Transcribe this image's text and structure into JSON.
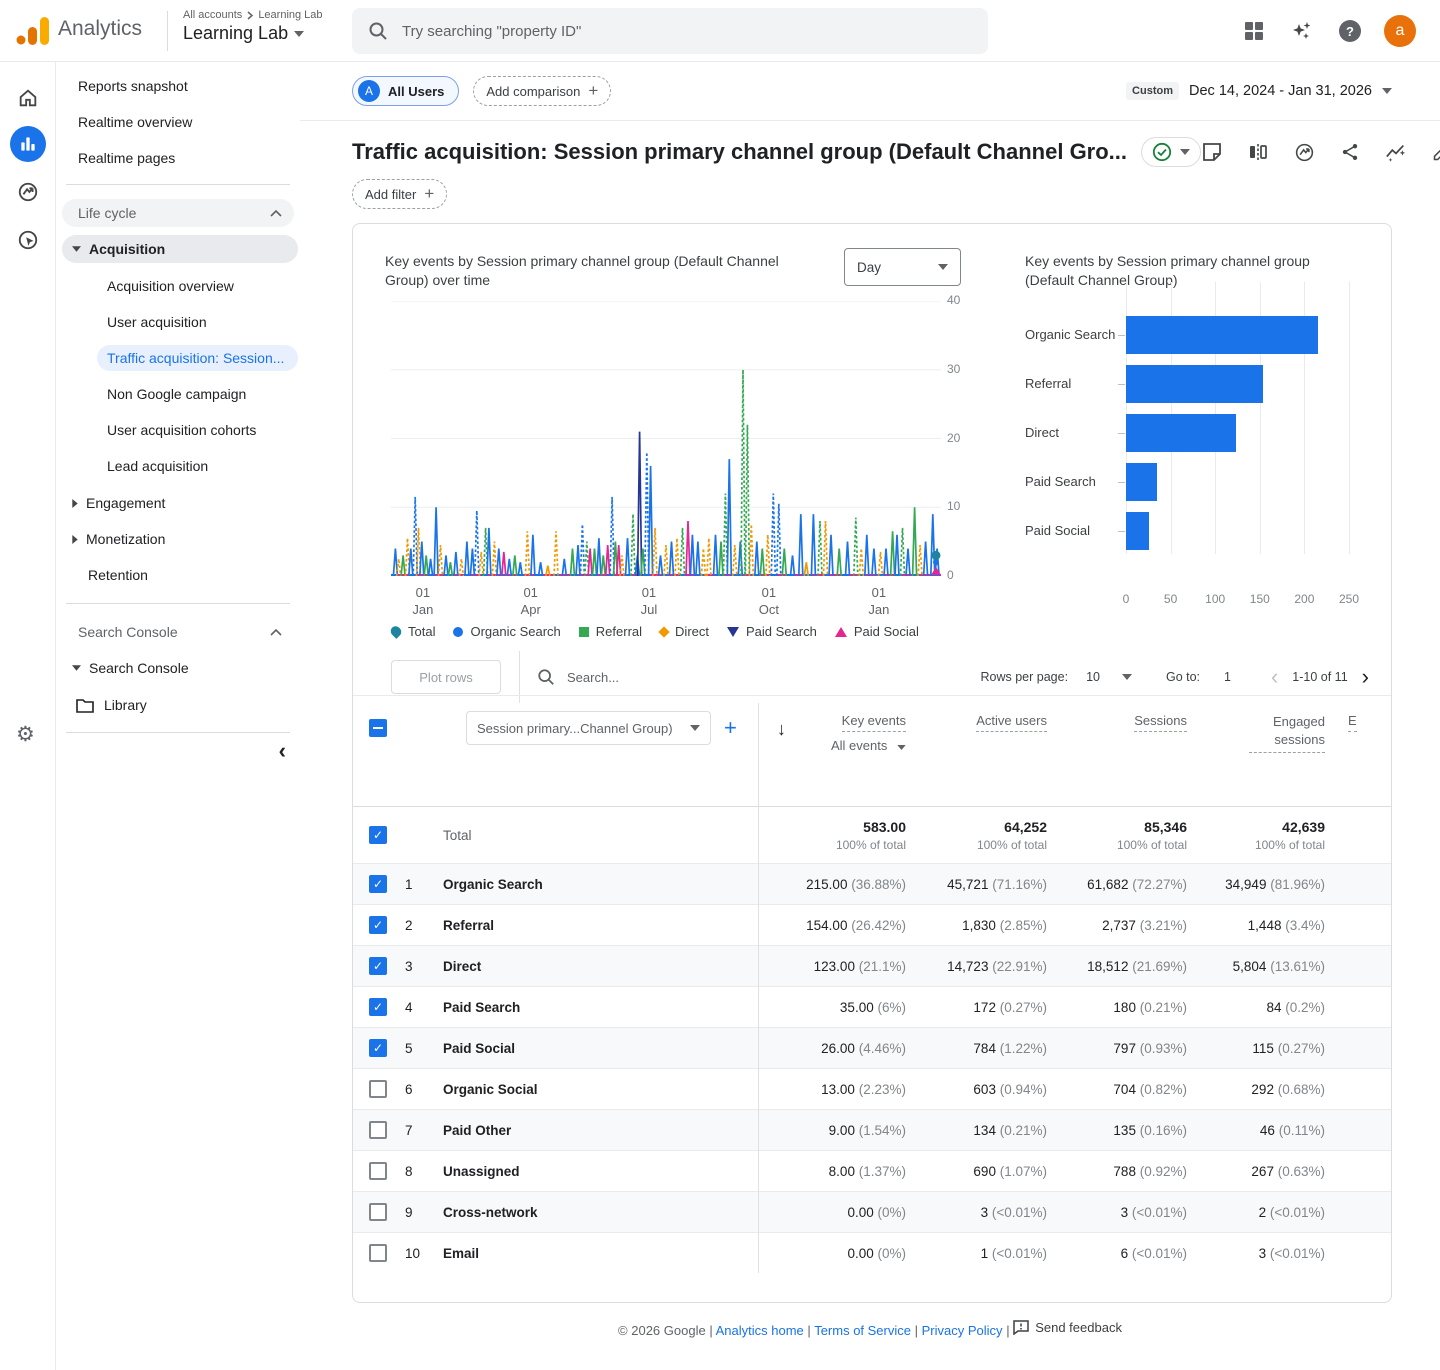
{
  "topbar": {
    "product": "Analytics",
    "breadcrumb": [
      "All accounts",
      "Learning Lab"
    ],
    "property": "Learning Lab",
    "search_placeholder": "Try searching \"property ID\"",
    "avatar_letter": "a",
    "help_glyph": "?"
  },
  "sidebar": {
    "top_items": [
      "Reports snapshot",
      "Realtime overview",
      "Realtime pages"
    ],
    "lifecycle_header": "Life cycle",
    "acquisition_label": "Acquisition",
    "acquisition_children": [
      "Acquisition overview",
      "User acquisition",
      "Traffic acquisition: Session...",
      "Non Google campaign",
      "User acquisition cohorts",
      "Lead acquisition"
    ],
    "engagement": "Engagement",
    "monetization": "Monetization",
    "retention": "Retention",
    "search_console_header": "Search Console",
    "search_console_item": "Search Console",
    "library": "Library"
  },
  "controls": {
    "all_users": "All Users",
    "all_users_badge": "A",
    "add_comparison": "Add comparison",
    "custom_label": "Custom",
    "date_range": "Dec 14, 2024 - Jan 31, 2026"
  },
  "page": {
    "title": "Traffic acquisition: Session primary channel group (Default Channel Gro...",
    "add_filter": "Add filter"
  },
  "chart_data": [
    {
      "type": "line",
      "title": "Key events by Session primary channel group (Default Channel Group) over time",
      "granularity": "Day",
      "ylim": [
        0,
        40
      ],
      "yticks": [
        40,
        30,
        20,
        10,
        0
      ],
      "xticks": [
        {
          "day": "01",
          "month": "Jan",
          "x": 0.058
        },
        {
          "day": "01",
          "month": "Apr",
          "x": 0.254
        },
        {
          "day": "01",
          "month": "Jul",
          "x": 0.469
        },
        {
          "day": "01",
          "month": "Oct",
          "x": 0.687
        },
        {
          "day": "01",
          "month": "Jan",
          "x": 0.887
        }
      ],
      "legend": [
        {
          "name": "Total",
          "color": "#1d85a0",
          "shape": "balloon"
        },
        {
          "name": "Organic Search",
          "color": "#1a73e8",
          "shape": "circle"
        },
        {
          "name": "Referral",
          "color": "#34a853",
          "shape": "square"
        },
        {
          "name": "Direct",
          "color": "#f29900",
          "shape": "diamond"
        },
        {
          "name": "Paid Search",
          "color": "#283593",
          "shape": "tri-down"
        },
        {
          "name": "Paid Social",
          "color": "#e52592",
          "shape": "tri-up"
        }
      ],
      "spikes": [
        [
          0.008,
          4,
          1,
          0
        ],
        [
          0.014,
          2.5,
          3,
          1
        ],
        [
          0.022,
          3,
          2,
          0
        ],
        [
          0.03,
          5.5,
          3,
          1
        ],
        [
          0.036,
          4,
          1,
          0
        ],
        [
          0.044,
          11.5,
          1,
          1
        ],
        [
          0.05,
          7,
          3,
          1
        ],
        [
          0.056,
          5,
          1,
          0
        ],
        [
          0.064,
          3,
          2,
          0
        ],
        [
          0.072,
          2.5,
          1,
          0
        ],
        [
          0.082,
          10,
          1,
          0
        ],
        [
          0.09,
          4.5,
          3,
          1
        ],
        [
          0.1,
          3,
          1,
          0
        ],
        [
          0.108,
          2,
          2,
          0
        ],
        [
          0.118,
          3.5,
          1,
          0
        ],
        [
          0.128,
          2.5,
          3,
          1
        ],
        [
          0.138,
          5,
          1,
          0
        ],
        [
          0.148,
          4,
          1,
          0
        ],
        [
          0.156,
          9.5,
          1,
          1
        ],
        [
          0.164,
          3.5,
          3,
          1
        ],
        [
          0.172,
          7,
          2,
          1
        ],
        [
          0.178,
          7,
          1,
          0
        ],
        [
          0.188,
          5,
          3,
          1
        ],
        [
          0.196,
          4,
          1,
          0
        ],
        [
          0.205,
          3.5,
          5,
          0
        ],
        [
          0.215,
          2.5,
          1,
          0
        ],
        [
          0.225,
          3,
          2,
          0
        ],
        [
          0.235,
          2,
          1,
          0
        ],
        [
          0.248,
          6.5,
          3,
          1
        ],
        [
          0.258,
          6,
          1,
          0
        ],
        [
          0.272,
          2,
          1,
          0
        ],
        [
          0.285,
          1.5,
          3,
          0
        ],
        [
          0.3,
          6.5,
          3,
          1
        ],
        [
          0.315,
          2.5,
          1,
          0
        ],
        [
          0.33,
          4,
          2,
          0
        ],
        [
          0.34,
          4.5,
          1,
          0
        ],
        [
          0.348,
          7.5,
          1,
          1
        ],
        [
          0.356,
          5,
          2,
          1
        ],
        [
          0.362,
          4,
          5,
          0
        ],
        [
          0.37,
          4,
          2,
          0
        ],
        [
          0.378,
          5.5,
          1,
          0
        ],
        [
          0.386,
          3,
          2,
          0
        ],
        [
          0.394,
          4.5,
          5,
          0
        ],
        [
          0.402,
          11.5,
          1,
          1
        ],
        [
          0.408,
          5,
          2,
          0
        ],
        [
          0.414,
          4.5,
          5,
          0
        ],
        [
          0.42,
          3,
          3,
          1
        ],
        [
          0.43,
          5.5,
          1,
          0
        ],
        [
          0.44,
          9,
          2,
          1
        ],
        [
          0.448,
          3,
          1,
          0
        ],
        [
          0.452,
          21,
          4,
          0
        ],
        [
          0.458,
          4,
          2,
          0
        ],
        [
          0.465,
          18,
          1,
          1
        ],
        [
          0.472,
          16,
          1,
          0
        ],
        [
          0.48,
          7,
          3,
          1
        ],
        [
          0.49,
          3,
          1,
          0
        ],
        [
          0.5,
          4.5,
          3,
          1
        ],
        [
          0.51,
          5,
          1,
          0
        ],
        [
          0.52,
          5.5,
          3,
          1
        ],
        [
          0.53,
          7,
          2,
          1
        ],
        [
          0.54,
          8,
          5,
          0
        ],
        [
          0.548,
          6,
          1,
          0
        ],
        [
          0.558,
          5,
          1,
          0
        ],
        [
          0.568,
          4,
          3,
          1
        ],
        [
          0.578,
          5.5,
          3,
          1
        ],
        [
          0.59,
          6,
          1,
          0
        ],
        [
          0.6,
          5,
          2,
          0
        ],
        [
          0.608,
          12,
          2,
          1
        ],
        [
          0.615,
          17,
          1,
          0
        ],
        [
          0.625,
          4.5,
          3,
          1
        ],
        [
          0.635,
          5,
          1,
          0
        ],
        [
          0.64,
          30,
          2,
          1
        ],
        [
          0.648,
          22,
          2,
          1
        ],
        [
          0.655,
          7.5,
          3,
          1
        ],
        [
          0.665,
          5,
          1,
          0
        ],
        [
          0.675,
          4,
          2,
          0
        ],
        [
          0.685,
          6,
          3,
          1
        ],
        [
          0.695,
          12,
          1,
          1
        ],
        [
          0.705,
          10.5,
          1,
          1
        ],
        [
          0.715,
          4,
          2,
          0
        ],
        [
          0.73,
          3,
          1,
          0
        ],
        [
          0.745,
          9,
          1,
          0
        ],
        [
          0.755,
          2,
          3,
          0
        ],
        [
          0.768,
          9,
          1,
          0
        ],
        [
          0.78,
          8,
          2,
          1
        ],
        [
          0.79,
          8,
          3,
          1
        ],
        [
          0.8,
          6,
          1,
          0
        ],
        [
          0.815,
          4,
          2,
          0
        ],
        [
          0.83,
          5,
          1,
          0
        ],
        [
          0.845,
          8.5,
          2,
          1
        ],
        [
          0.855,
          4,
          3,
          1
        ],
        [
          0.865,
          6,
          1,
          0
        ],
        [
          0.878,
          4,
          1,
          0
        ],
        [
          0.89,
          3.5,
          3,
          1
        ],
        [
          0.9,
          4,
          1,
          0
        ],
        [
          0.912,
          6.5,
          2,
          0
        ],
        [
          0.92,
          6,
          1,
          0
        ],
        [
          0.93,
          7,
          2,
          1
        ],
        [
          0.94,
          4,
          1,
          0
        ],
        [
          0.952,
          10,
          2,
          0
        ],
        [
          0.962,
          4.5,
          3,
          1
        ],
        [
          0.972,
          5,
          1,
          0
        ],
        [
          0.985,
          9,
          1,
          0
        ],
        [
          0.993,
          4,
          1,
          0
        ]
      ]
    },
    {
      "type": "bar",
      "orientation": "horizontal",
      "title": "Key events by Session primary channel group (Default Channel Group)",
      "categories": [
        "Organic Search",
        "Referral",
        "Direct",
        "Paid Search",
        "Paid Social"
      ],
      "values": [
        215,
        154,
        123,
        35,
        26
      ],
      "xlim": [
        0,
        250
      ],
      "xticks": [
        0,
        50,
        100,
        150,
        200,
        250
      ],
      "bar_color": "#1a73e8"
    }
  ],
  "table": {
    "toolbar": {
      "plot_rows": "Plot rows",
      "search_placeholder": "Search...",
      "rows_per_page_label": "Rows per page:",
      "rows_per_page": "10",
      "go_to_label": "Go to:",
      "go_to": "1",
      "range": "1-10 of 11",
      "prev": "‹",
      "next": "›"
    },
    "dimension_dropdown": "Session primary...Channel Group)",
    "columns": [
      "Key events",
      "Active users",
      "Sessions",
      "Engaged sessions",
      "E"
    ],
    "subheader": "All events",
    "total": {
      "label": "Total",
      "values": [
        "583.00",
        "64,252",
        "85,346",
        "42,639"
      ],
      "sub": "100% of total"
    },
    "rows": [
      {
        "n": "1",
        "name": "Organic Search",
        "checked": true,
        "cells": [
          [
            "215.00",
            "(36.88%)"
          ],
          [
            "45,721",
            "(71.16%)"
          ],
          [
            "61,682",
            "(72.27%)"
          ],
          [
            "34,949",
            "(81.96%)"
          ]
        ]
      },
      {
        "n": "2",
        "name": "Referral",
        "checked": true,
        "cells": [
          [
            "154.00",
            "(26.42%)"
          ],
          [
            "1,830",
            "(2.85%)"
          ],
          [
            "2,737",
            "(3.21%)"
          ],
          [
            "1,448",
            "(3.4%)"
          ]
        ]
      },
      {
        "n": "3",
        "name": "Direct",
        "checked": true,
        "cells": [
          [
            "123.00",
            "(21.1%)"
          ],
          [
            "14,723",
            "(22.91%)"
          ],
          [
            "18,512",
            "(21.69%)"
          ],
          [
            "5,804",
            "(13.61%)"
          ]
        ]
      },
      {
        "n": "4",
        "name": "Paid Search",
        "checked": true,
        "cells": [
          [
            "35.00",
            "(6%)"
          ],
          [
            "172",
            "(0.27%)"
          ],
          [
            "180",
            "(0.21%)"
          ],
          [
            "84",
            "(0.2%)"
          ]
        ]
      },
      {
        "n": "5",
        "name": "Paid Social",
        "checked": true,
        "cells": [
          [
            "26.00",
            "(4.46%)"
          ],
          [
            "784",
            "(1.22%)"
          ],
          [
            "797",
            "(0.93%)"
          ],
          [
            "115",
            "(0.27%)"
          ]
        ]
      },
      {
        "n": "6",
        "name": "Organic Social",
        "checked": false,
        "cells": [
          [
            "13.00",
            "(2.23%)"
          ],
          [
            "603",
            "(0.94%)"
          ],
          [
            "704",
            "(0.82%)"
          ],
          [
            "292",
            "(0.68%)"
          ]
        ]
      },
      {
        "n": "7",
        "name": "Paid Other",
        "checked": false,
        "cells": [
          [
            "9.00",
            "(1.54%)"
          ],
          [
            "134",
            "(0.21%)"
          ],
          [
            "135",
            "(0.16%)"
          ],
          [
            "46",
            "(0.11%)"
          ]
        ]
      },
      {
        "n": "8",
        "name": "Unassigned",
        "checked": false,
        "cells": [
          [
            "8.00",
            "(1.37%)"
          ],
          [
            "690",
            "(1.07%)"
          ],
          [
            "788",
            "(0.92%)"
          ],
          [
            "267",
            "(0.63%)"
          ]
        ]
      },
      {
        "n": "9",
        "name": "Cross-network",
        "checked": false,
        "cells": [
          [
            "0.00",
            "(0%)"
          ],
          [
            "3",
            "(<0.01%)"
          ],
          [
            "3",
            "(<0.01%)"
          ],
          [
            "2",
            "(<0.01%)"
          ]
        ]
      },
      {
        "n": "10",
        "name": "Email",
        "checked": false,
        "cells": [
          [
            "0.00",
            "(0%)"
          ],
          [
            "1",
            "(<0.01%)"
          ],
          [
            "6",
            "(<0.01%)"
          ],
          [
            "3",
            "(<0.01%)"
          ]
        ]
      }
    ]
  },
  "footer": {
    "copyright": "© 2026 Google",
    "separator": "|",
    "links": [
      "Analytics home",
      "Terms of Service",
      "Privacy Policy"
    ],
    "feedback_label": "Send feedback"
  }
}
